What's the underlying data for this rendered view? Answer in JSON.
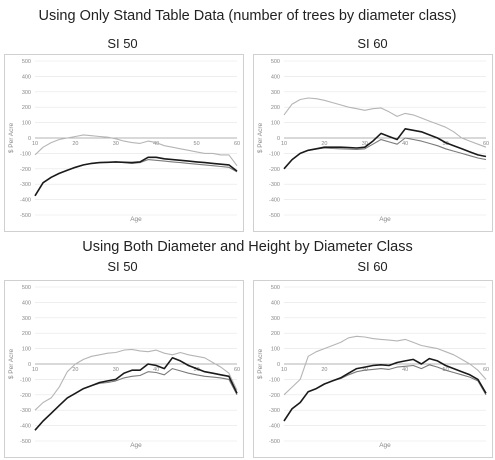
{
  "section_titles": {
    "top": "Using Only Stand Table Data (number of trees by diameter class)",
    "bottom": "Using Both Diameter and Height by Diameter Class"
  },
  "colors": {
    "upper": "#b5b5b5",
    "middle": "#1a1a1a",
    "lower": "#7a7a7a",
    "grid": "#e4e4e4",
    "zero": "#9a9a9a"
  },
  "chart_data": [
    {
      "type": "line",
      "title": "SI 50",
      "xlabel": "Age",
      "ylabel": "$ Per Acre",
      "xlim": [
        10,
        60
      ],
      "ylim": [
        -500,
        500
      ],
      "xticks": [
        "10",
        "20",
        "30",
        "40",
        "50",
        "60"
      ],
      "yticks": [
        "500",
        "400",
        "300",
        "200",
        "100",
        "0",
        "-100",
        "-200",
        "-300",
        "-400",
        "-500"
      ],
      "series": [
        {
          "role": "upper",
          "x": [
            10,
            12,
            14,
            16,
            18,
            20,
            22,
            24,
            26,
            28,
            30,
            32,
            34,
            36,
            38,
            40,
            42,
            44,
            46,
            48,
            50,
            52,
            54,
            56,
            58,
            60
          ],
          "values": [
            -110,
            -60,
            -30,
            -10,
            0,
            10,
            20,
            15,
            10,
            5,
            -5,
            -20,
            -30,
            -35,
            -20,
            -30,
            -50,
            -60,
            -70,
            -80,
            -90,
            -100,
            -100,
            -110,
            -110,
            -180
          ]
        },
        {
          "role": "middle",
          "x": [
            10,
            12,
            14,
            16,
            18,
            20,
            22,
            24,
            26,
            28,
            30,
            32,
            34,
            36,
            38,
            40,
            42,
            44,
            46,
            48,
            50,
            52,
            54,
            56,
            58,
            60
          ],
          "values": [
            -375,
            -290,
            -255,
            -230,
            -210,
            -190,
            -175,
            -165,
            -160,
            -158,
            -155,
            -158,
            -160,
            -155,
            -125,
            -125,
            -135,
            -140,
            -145,
            -150,
            -155,
            -160,
            -165,
            -170,
            -175,
            -215
          ]
        },
        {
          "role": "lower",
          "x": [
            10,
            12,
            14,
            16,
            18,
            20,
            22,
            24,
            26,
            28,
            30,
            32,
            34,
            36,
            38,
            40,
            42,
            44,
            46,
            48,
            50,
            52,
            54,
            56,
            58,
            60
          ],
          "values": [
            -375,
            -290,
            -255,
            -230,
            -210,
            -190,
            -175,
            -165,
            -160,
            -158,
            -155,
            -160,
            -165,
            -160,
            -140,
            -145,
            -150,
            -155,
            -160,
            -165,
            -170,
            -175,
            -180,
            -185,
            -190,
            -220
          ]
        }
      ]
    },
    {
      "type": "line",
      "title": "SI 60",
      "xlabel": "Age",
      "ylabel": "$ Per Acre",
      "xlim": [
        10,
        60
      ],
      "ylim": [
        -500,
        500
      ],
      "xticks": [
        "10",
        "20",
        "30",
        "40",
        "50",
        "60"
      ],
      "yticks": [
        "500",
        "400",
        "300",
        "200",
        "100",
        "0",
        "-100",
        "-200",
        "-300",
        "-400",
        "-500"
      ],
      "series": [
        {
          "role": "upper",
          "x": [
            10,
            12,
            14,
            16,
            18,
            20,
            22,
            24,
            26,
            28,
            30,
            32,
            34,
            36,
            38,
            40,
            42,
            44,
            46,
            48,
            50,
            52,
            54,
            56,
            58,
            60
          ],
          "values": [
            150,
            220,
            250,
            260,
            255,
            245,
            230,
            215,
            200,
            190,
            180,
            190,
            195,
            170,
            140,
            160,
            150,
            130,
            110,
            90,
            70,
            40,
            0,
            -20,
            -40,
            -60
          ]
        },
        {
          "role": "middle",
          "x": [
            10,
            12,
            14,
            16,
            18,
            20,
            22,
            24,
            26,
            28,
            30,
            32,
            34,
            36,
            38,
            40,
            42,
            44,
            46,
            48,
            50,
            52,
            54,
            56,
            58,
            60
          ],
          "values": [
            -200,
            -140,
            -100,
            -80,
            -70,
            -60,
            -60,
            -60,
            -62,
            -65,
            -60,
            -20,
            30,
            10,
            -10,
            60,
            50,
            40,
            20,
            0,
            -30,
            -50,
            -70,
            -90,
            -110,
            -120
          ]
        },
        {
          "role": "lower",
          "x": [
            10,
            12,
            14,
            16,
            18,
            20,
            22,
            24,
            26,
            28,
            30,
            32,
            34,
            36,
            38,
            40,
            42,
            44,
            46,
            48,
            50,
            52,
            54,
            56,
            58,
            60
          ],
          "values": [
            -200,
            -140,
            -100,
            -80,
            -72,
            -65,
            -68,
            -70,
            -72,
            -75,
            -70,
            -40,
            -10,
            -25,
            -40,
            0,
            -10,
            -20,
            -35,
            -50,
            -70,
            -85,
            -100,
            -115,
            -130,
            -140
          ]
        }
      ]
    },
    {
      "type": "line",
      "title": "SI 50",
      "xlabel": "Age",
      "ylabel": "$ Per Acre",
      "xlim": [
        10,
        60
      ],
      "ylim": [
        -500,
        500
      ],
      "xticks": [
        "10",
        "20",
        "30",
        "40",
        "50",
        "60"
      ],
      "yticks": [
        "500",
        "400",
        "300",
        "200",
        "100",
        "0",
        "-100",
        "-200",
        "-300",
        "-400",
        "-500"
      ],
      "series": [
        {
          "role": "upper",
          "x": [
            10,
            12,
            14,
            16,
            18,
            20,
            22,
            24,
            26,
            28,
            30,
            32,
            34,
            36,
            38,
            40,
            42,
            44,
            46,
            48,
            50,
            52,
            54,
            56,
            58,
            60
          ],
          "values": [
            -300,
            -250,
            -220,
            -150,
            -50,
            0,
            30,
            50,
            60,
            70,
            75,
            90,
            95,
            85,
            80,
            90,
            70,
            60,
            75,
            60,
            50,
            40,
            10,
            -20,
            -60,
            -170
          ]
        },
        {
          "role": "middle",
          "x": [
            10,
            12,
            14,
            16,
            18,
            20,
            22,
            24,
            26,
            28,
            30,
            32,
            34,
            36,
            38,
            40,
            42,
            44,
            46,
            48,
            50,
            52,
            54,
            56,
            58,
            60
          ],
          "values": [
            -430,
            -370,
            -320,
            -270,
            -220,
            -190,
            -160,
            -140,
            -120,
            -110,
            -100,
            -60,
            -40,
            -40,
            0,
            -10,
            -30,
            40,
            20,
            -10,
            -30,
            -50,
            -60,
            -70,
            -80,
            -190
          ]
        },
        {
          "role": "lower",
          "x": [
            10,
            12,
            14,
            16,
            18,
            20,
            22,
            24,
            26,
            28,
            30,
            32,
            34,
            36,
            38,
            40,
            42,
            44,
            46,
            48,
            50,
            52,
            54,
            56,
            58,
            60
          ],
          "values": [
            -430,
            -370,
            -320,
            -270,
            -220,
            -190,
            -160,
            -140,
            -125,
            -120,
            -110,
            -90,
            -80,
            -75,
            -50,
            -55,
            -70,
            -30,
            -45,
            -60,
            -70,
            -80,
            -85,
            -90,
            -100,
            -200
          ]
        }
      ]
    },
    {
      "type": "line",
      "title": "SI 60",
      "xlabel": "Age",
      "ylabel": "$ Per Acre",
      "xlim": [
        10,
        60
      ],
      "ylim": [
        -500,
        500
      ],
      "xticks": [
        "10",
        "20",
        "30",
        "40",
        "50",
        "60"
      ],
      "yticks": [
        "500",
        "400",
        "300",
        "200",
        "100",
        "0",
        "-100",
        "-200",
        "-300",
        "-400",
        "-500"
      ],
      "series": [
        {
          "role": "upper",
          "x": [
            10,
            12,
            14,
            16,
            18,
            20,
            22,
            24,
            26,
            28,
            30,
            32,
            34,
            36,
            38,
            40,
            42,
            44,
            46,
            48,
            50,
            52,
            54,
            56,
            58,
            60
          ],
          "values": [
            -200,
            -150,
            -100,
            50,
            80,
            100,
            120,
            140,
            170,
            180,
            175,
            165,
            160,
            155,
            150,
            160,
            140,
            120,
            110,
            100,
            80,
            60,
            30,
            0,
            -40,
            -100
          ]
        },
        {
          "role": "middle",
          "x": [
            10,
            12,
            14,
            16,
            18,
            20,
            22,
            24,
            26,
            28,
            30,
            32,
            34,
            36,
            38,
            40,
            42,
            44,
            46,
            48,
            50,
            52,
            54,
            56,
            58,
            60
          ],
          "values": [
            -370,
            -290,
            -250,
            -180,
            -160,
            -130,
            -110,
            -90,
            -60,
            -30,
            -20,
            -10,
            -5,
            -10,
            10,
            20,
            30,
            0,
            35,
            20,
            -10,
            -30,
            -50,
            -70,
            -100,
            -190
          ]
        },
        {
          "role": "lower",
          "x": [
            10,
            12,
            14,
            16,
            18,
            20,
            22,
            24,
            26,
            28,
            30,
            32,
            34,
            36,
            38,
            40,
            42,
            44,
            46,
            48,
            50,
            52,
            54,
            56,
            58,
            60
          ],
          "values": [
            -370,
            -290,
            -250,
            -180,
            -160,
            -130,
            -110,
            -95,
            -70,
            -50,
            -40,
            -35,
            -30,
            -35,
            -20,
            -15,
            -10,
            -30,
            -5,
            -20,
            -40,
            -55,
            -70,
            -85,
            -110,
            -200
          ]
        }
      ]
    }
  ]
}
